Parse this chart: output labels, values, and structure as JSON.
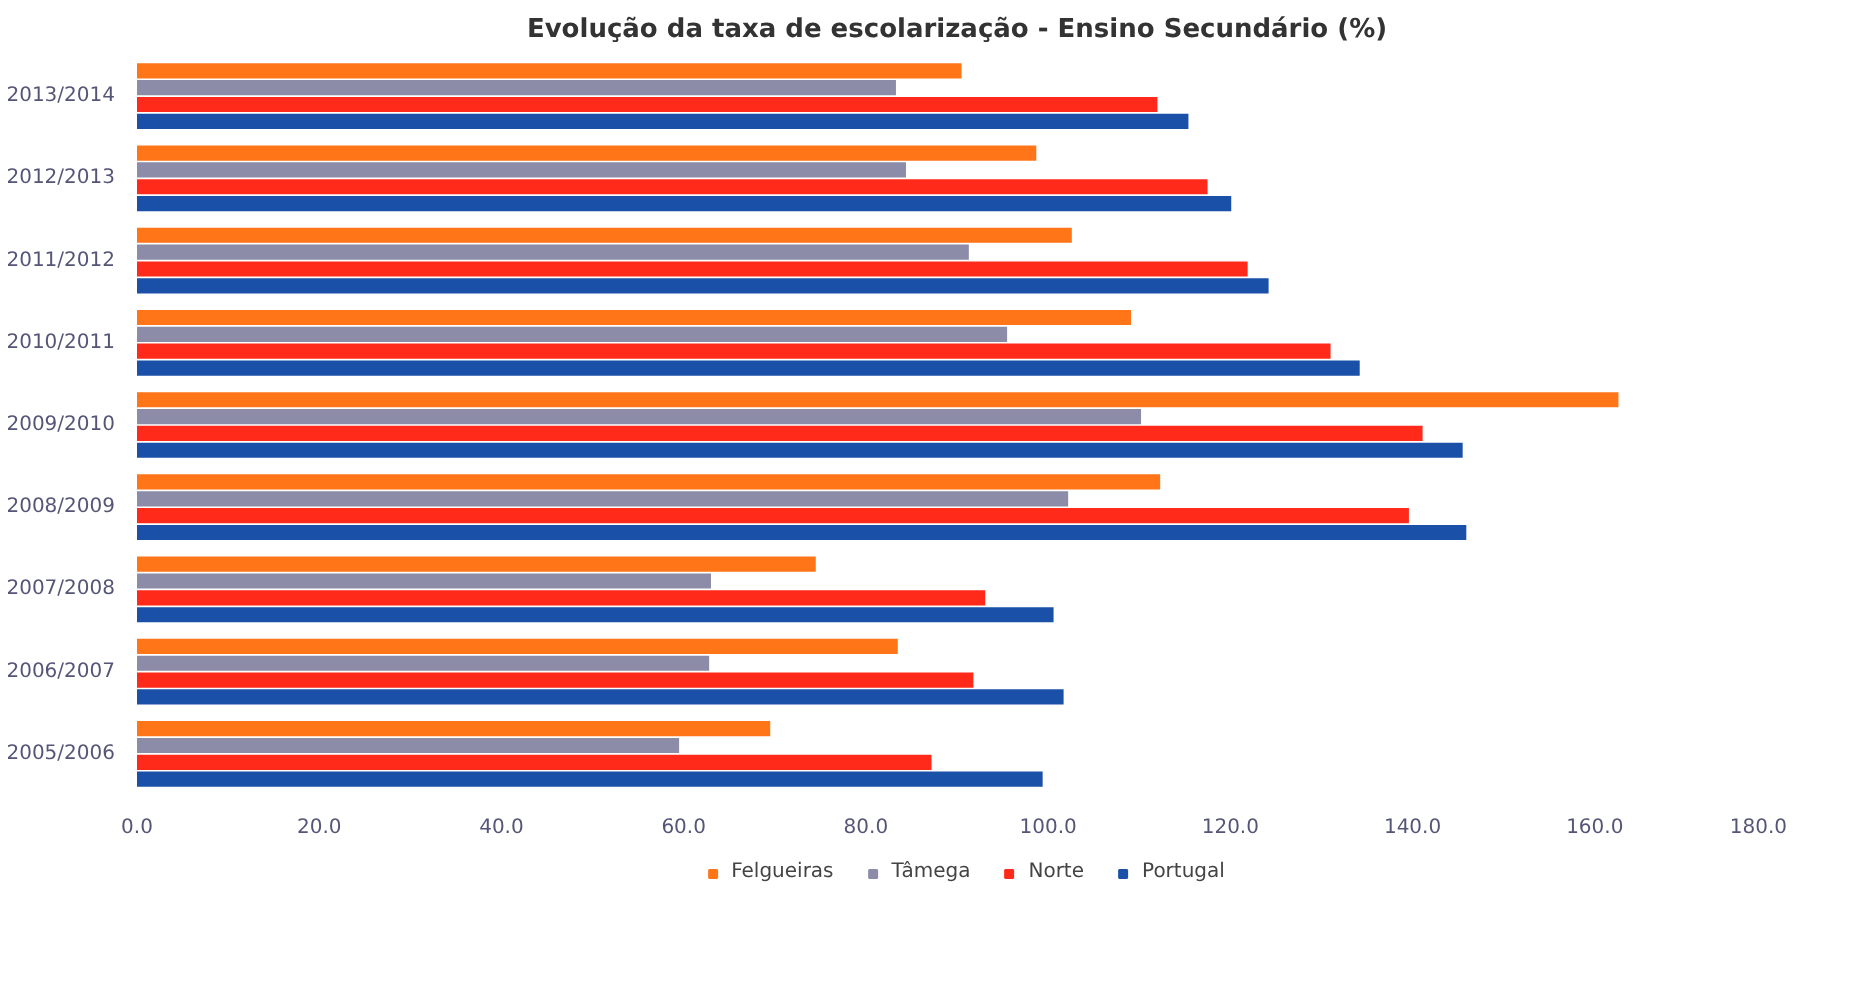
{
  "chart_data": {
    "type": "bar",
    "orientation": "horizontal",
    "title": "Evolução da taxa de escolarização - Ensino Secundário (%)",
    "categories": [
      "2013/2014",
      "2012/2013",
      "2011/2012",
      "2010/2011",
      "2009/2010",
      "2008/2009",
      "2007/2008",
      "2006/2007",
      "2005/2006"
    ],
    "series": [
      {
        "name": "Felgueiras",
        "color": "#ff7518",
        "values": [
          90.5,
          98.7,
          102.6,
          109.1,
          162.6,
          112.3,
          74.5,
          83.5,
          69.5
        ]
      },
      {
        "name": "Tâmega",
        "color": "#8c8ca8",
        "values": [
          83.3,
          84.4,
          91.3,
          95.5,
          110.2,
          102.2,
          63.0,
          62.8,
          59.5
        ]
      },
      {
        "name": "Norte",
        "color": "#ff2a1a",
        "values": [
          112.0,
          117.5,
          121.9,
          131.0,
          141.1,
          139.6,
          93.1,
          91.8,
          87.2
        ]
      },
      {
        "name": "Portugal",
        "color": "#1a50a8",
        "values": [
          115.4,
          120.1,
          124.2,
          134.2,
          145.5,
          145.9,
          100.6,
          101.7,
          99.4
        ]
      }
    ],
    "xlim": [
      0,
      180
    ],
    "xticks": [
      {
        "value": 0,
        "label": "0.0"
      },
      {
        "value": 20,
        "label": "20.0"
      },
      {
        "value": 40,
        "label": "40.0"
      },
      {
        "value": 60,
        "label": "60.0"
      },
      {
        "value": 80,
        "label": "80.0"
      },
      {
        "value": 100,
        "label": "100.0"
      },
      {
        "value": 120,
        "label": "120.0"
      },
      {
        "value": 140,
        "label": "140.0"
      },
      {
        "value": 160,
        "label": "160.0"
      },
      {
        "value": 180,
        "label": "180.0"
      }
    ],
    "legend": "bottom"
  }
}
